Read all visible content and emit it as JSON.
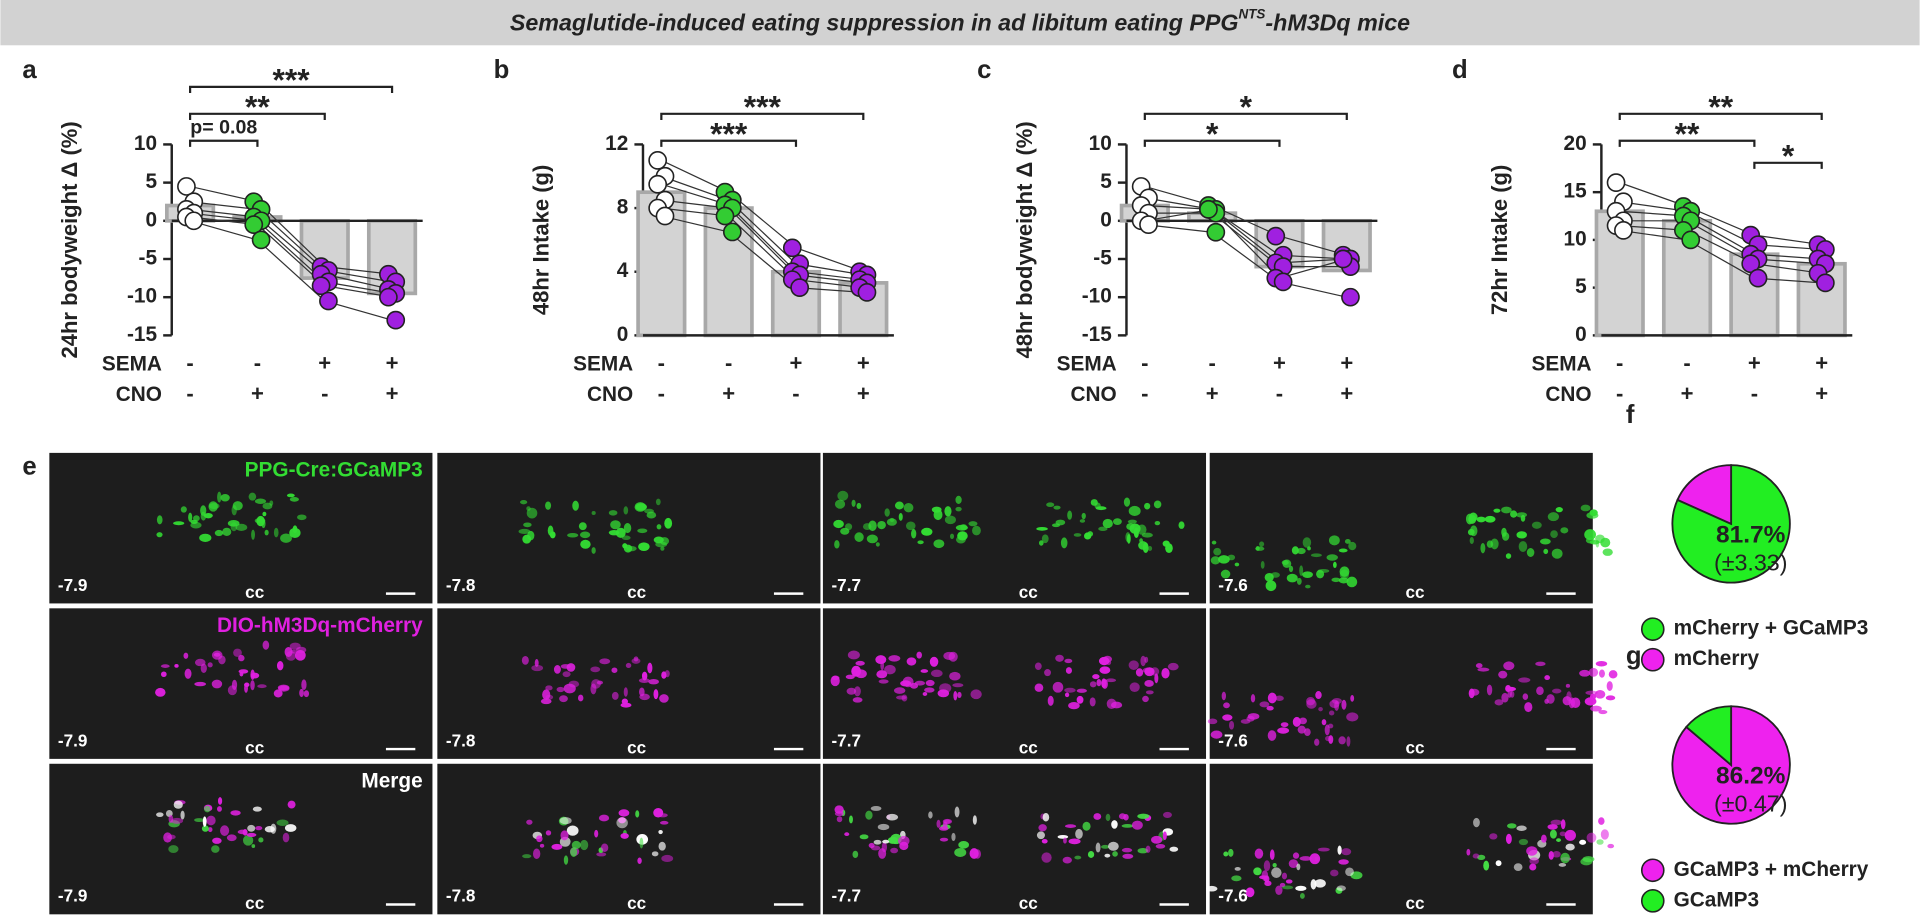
{
  "figure_title": {
    "main": "Semaglutide-induced eating suppression in ad libitum eating PPG",
    "sup": "NTS",
    "end": "-hM3Dq mice"
  },
  "chart_data": [
    {
      "type": "bar",
      "panel": "a",
      "ylabel": "24hr bodyweight Δ (%)",
      "ylim": [
        -15,
        10
      ],
      "yticks": [
        -15,
        -10,
        -5,
        0,
        5,
        10
      ],
      "condition_rows": [
        {
          "name": "SEMA",
          "labels": [
            "-",
            "-",
            "+",
            "+"
          ]
        },
        {
          "name": "CNO",
          "labels": [
            "-",
            "+",
            "-",
            "+"
          ]
        }
      ],
      "values": [
        2,
        0.5,
        -7.5,
        -9.5
      ],
      "color": "#d3d3d3",
      "point_colors": [
        "#ffffff",
        "#33cc33",
        "#a020e0",
        "#a020e0"
      ],
      "points": [
        [
          4.5,
          2.5,
          -6,
          -7
        ],
        [
          2.5,
          1.5,
          -6.5,
          -8
        ],
        [
          1.5,
          0.5,
          -7,
          -9
        ],
        [
          1,
          0,
          -8,
          -9.5
        ],
        [
          0.5,
          -0.5,
          -8.5,
          -10
        ],
        [
          0,
          -2.5,
          -10.5,
          -13
        ]
      ],
      "comparisons": [
        {
          "groups": [
            0,
            1
          ],
          "label": "p= 0.08"
        },
        {
          "groups": [
            0,
            2
          ],
          "label": "**"
        },
        {
          "groups": [
            0,
            3
          ],
          "label": "***"
        }
      ]
    },
    {
      "type": "bar",
      "panel": "b",
      "ylabel": "48hr Intake (g)",
      "ylim": [
        0,
        12
      ],
      "yticks": [
        0,
        4,
        8,
        12
      ],
      "condition_rows": [
        {
          "name": "SEMA",
          "labels": [
            "-",
            "-",
            "+",
            "+"
          ]
        },
        {
          "name": "CNO",
          "labels": [
            "-",
            "+",
            "-",
            "+"
          ]
        }
      ],
      "values": [
        9,
        8,
        4,
        3.3
      ],
      "color": "#d3d3d3",
      "point_colors": [
        "#ffffff",
        "#33cc33",
        "#a020e0",
        "#a020e0"
      ],
      "points": [
        [
          11,
          9,
          5.5,
          4
        ],
        [
          10,
          8.5,
          4.5,
          3.8
        ],
        [
          9.5,
          8.2,
          4,
          3.5
        ],
        [
          8.5,
          8,
          3.8,
          3.3
        ],
        [
          8,
          7.5,
          3.5,
          3
        ],
        [
          7.5,
          6.5,
          3,
          2.7
        ]
      ],
      "comparisons": [
        {
          "groups": [
            0,
            2
          ],
          "label": "***"
        },
        {
          "groups": [
            0,
            3
          ],
          "label": "***"
        }
      ]
    },
    {
      "type": "bar",
      "panel": "c",
      "ylabel": "48hr bodyweight Δ (%)",
      "ylim": [
        -15,
        10
      ],
      "yticks": [
        -15,
        -10,
        -5,
        0,
        5,
        10
      ],
      "condition_rows": [
        {
          "name": "SEMA",
          "labels": [
            "-",
            "-",
            "+",
            "+"
          ]
        },
        {
          "name": "CNO",
          "labels": [
            "-",
            "+",
            "-",
            "+"
          ]
        }
      ],
      "values": [
        2,
        1,
        -6,
        -6.5
      ],
      "color": "#d3d3d3",
      "point_colors": [
        "#ffffff",
        "#33cc33",
        "#a020e0",
        "#a020e0"
      ],
      "points": [
        [
          4.5,
          2,
          -2,
          -4.5
        ],
        [
          3,
          1.5,
          -4.5,
          -5
        ],
        [
          2,
          1.5,
          -5.5,
          -5
        ],
        [
          1,
          1,
          -6,
          -6
        ],
        [
          0,
          1.5,
          -7.5,
          -5
        ],
        [
          -0.5,
          -1.5,
          -8,
          -10
        ]
      ],
      "comparisons": [
        {
          "groups": [
            0,
            2
          ],
          "label": "*"
        },
        {
          "groups": [
            0,
            3
          ],
          "label": "*"
        }
      ]
    },
    {
      "type": "bar",
      "panel": "d",
      "ylabel": "72hr Intake (g)",
      "ylim": [
        0,
        20
      ],
      "yticks": [
        0,
        5,
        10,
        15,
        20
      ],
      "condition_rows": [
        {
          "name": "SEMA",
          "labels": [
            "-",
            "-",
            "+",
            "+"
          ]
        },
        {
          "name": "CNO",
          "labels": [
            "-",
            "+",
            "-",
            "+"
          ]
        }
      ],
      "values": [
        13,
        12,
        8.5,
        7.5
      ],
      "color": "#d3d3d3",
      "point_colors": [
        "#ffffff",
        "#33cc33",
        "#a020e0",
        "#a020e0"
      ],
      "points": [
        [
          16,
          13.5,
          10.5,
          9.5
        ],
        [
          14,
          13,
          9.5,
          9
        ],
        [
          13,
          12.5,
          8.5,
          8
        ],
        [
          12,
          12,
          8,
          7.5
        ],
        [
          11.5,
          11,
          7.5,
          6.5
        ],
        [
          11,
          10,
          6,
          5.5
        ]
      ],
      "comparisons": [
        {
          "groups": [
            0,
            2
          ],
          "label": "**"
        },
        {
          "groups": [
            0,
            3
          ],
          "label": "**"
        },
        {
          "groups": [
            2,
            3
          ],
          "label": "*"
        }
      ]
    },
    {
      "type": "pie",
      "panel": "f",
      "categories": [
        "mCherry + GCaMP3",
        "mCherry"
      ],
      "values": [
        81.7,
        18.3
      ],
      "colors": [
        "#22ee22",
        "#ee22ee"
      ],
      "value_labels": [
        "81.7%",
        null
      ],
      "error_labels": [
        "(±3.33)",
        null
      ]
    },
    {
      "type": "pie",
      "panel": "g",
      "categories": [
        "GCaMP3 + mCherry",
        "GCaMP3"
      ],
      "values": [
        86.2,
        13.8
      ],
      "colors": [
        "#ee22ee",
        "#22ee22"
      ],
      "value_labels": [
        "86.2%",
        null
      ],
      "error_labels": [
        "(±0.47)",
        null
      ]
    }
  ],
  "micrographs": {
    "panel": "e",
    "rows": [
      "PPG-Cre:GCaMP3",
      "DIO-hM3Dq-mCherry",
      "Merge"
    ],
    "columns": [
      "-7.9",
      "-7.8",
      "-7.7",
      "-7.6"
    ],
    "landmark": "cc"
  }
}
